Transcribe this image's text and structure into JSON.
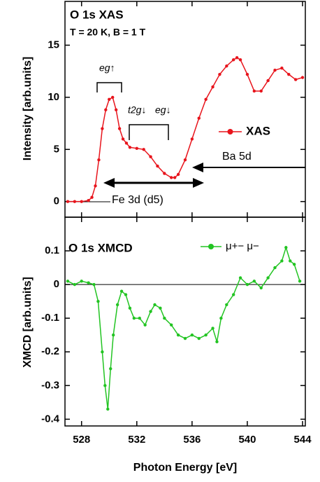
{
  "chart_data": [
    {
      "type": "line",
      "title": "O 1s XAS",
      "subtitle": "T = 20 K, B = 1 T",
      "ylabel": "Intensity [arb.units]",
      "xlim": [
        526.8,
        544.2
      ],
      "ylim": [
        -1.5,
        19.2
      ],
      "yticks": [
        0,
        5,
        10,
        15
      ],
      "x": [
        527,
        527.5,
        528,
        528.5,
        528.75,
        529,
        529.25,
        529.5,
        529.75,
        530,
        530.25,
        530.5,
        530.75,
        531,
        531.25,
        531.5,
        532,
        532.5,
        533,
        533.5,
        534,
        534.5,
        534.75,
        535,
        535.5,
        536,
        536.5,
        537,
        537.5,
        538,
        538.5,
        539,
        539.25,
        539.5,
        540,
        540.5,
        541,
        541.5,
        542,
        542.5,
        543,
        543.5,
        544
      ],
      "series": [
        {
          "name": "XAS",
          "color": "#e8141c",
          "values": [
            0,
            0,
            0,
            0.1,
            0.4,
            1.5,
            4,
            7,
            8.8,
            9.8,
            10,
            8.8,
            7,
            6,
            5.6,
            5.2,
            5.1,
            5.0,
            4.3,
            3.4,
            2.7,
            2.3,
            2.3,
            2.6,
            4,
            6,
            8,
            9.8,
            11,
            12.2,
            13,
            13.6,
            13.8,
            13.6,
            12.2,
            10.6,
            10.6,
            11.6,
            12.6,
            12.8,
            12.2,
            11.7,
            11.9
          ]
        }
      ],
      "annotations": [
        "eg↑",
        "t2g↓",
        "eg↓",
        "Ba 5d",
        "Fe 3d (d5)"
      ]
    },
    {
      "type": "line",
      "title": "O 1s XMCD",
      "ylabel": "XMCD [arb.units]",
      "xlabel": "Photon Energy [eV]",
      "xlim": [
        526.8,
        544.2
      ],
      "ylim": [
        -0.42,
        0.2
      ],
      "xticks": [
        528,
        532,
        536,
        540,
        544
      ],
      "yticks": [
        {
          "value": 0.1,
          "label": "0.1"
        },
        {
          "value": 0,
          "label": "0"
        },
        {
          "value": -0.1,
          "label": "-0.1"
        },
        {
          "value": -0.2,
          "label": "-0.2"
        },
        {
          "value": -0.3,
          "label": "-0.3"
        },
        {
          "value": -0.4,
          "label": "-0.4"
        }
      ],
      "x": [
        527,
        527.5,
        528,
        528.5,
        528.9,
        529.2,
        529.5,
        529.7,
        529.9,
        530.1,
        530.3,
        530.6,
        530.9,
        531.2,
        531.5,
        531.8,
        532.2,
        532.6,
        533,
        533.3,
        533.7,
        534,
        534.5,
        535,
        535.5,
        536,
        536.5,
        537,
        537.5,
        537.8,
        538.1,
        538.5,
        539,
        539.5,
        540,
        540.5,
        541,
        541.5,
        542,
        542.5,
        542.8,
        543.1,
        543.4,
        543.8
      ],
      "series": [
        {
          "name": "μ+− μ−",
          "color": "#22c422",
          "values": [
            0.01,
            0,
            0.01,
            0.005,
            0,
            -0.05,
            -0.2,
            -0.3,
            -0.37,
            -0.25,
            -0.15,
            -0.06,
            -0.02,
            -0.03,
            -0.07,
            -0.1,
            -0.1,
            -0.12,
            -0.08,
            -0.06,
            -0.07,
            -0.1,
            -0.12,
            -0.15,
            -0.16,
            -0.15,
            -0.16,
            -0.15,
            -0.13,
            -0.17,
            -0.1,
            -0.06,
            -0.03,
            0.02,
            0,
            0.01,
            -0.01,
            0.02,
            0.05,
            0.07,
            0.11,
            0.07,
            0.06,
            0.01
          ]
        }
      ]
    }
  ]
}
